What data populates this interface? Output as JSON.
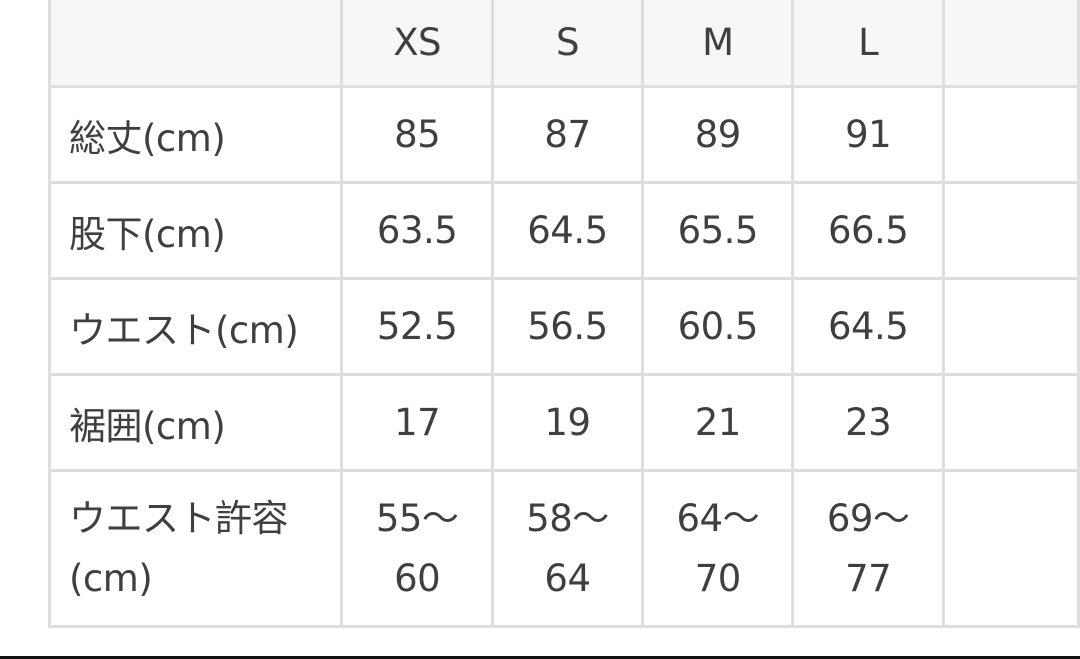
{
  "size_table": {
    "columns": [
      "",
      "XS",
      "S",
      "M",
      "L",
      ""
    ],
    "rows": [
      {
        "label": "総丈(cm)",
        "values": [
          "85",
          "87",
          "89",
          "91",
          ""
        ]
      },
      {
        "label": "股下(cm)",
        "values": [
          "63.5",
          "64.5",
          "65.5",
          "66.5",
          ""
        ]
      },
      {
        "label": "ウエスト(cm)",
        "values": [
          "52.5",
          "56.5",
          "60.5",
          "64.5",
          ""
        ]
      },
      {
        "label": "裾囲(cm)",
        "values": [
          "17",
          "19",
          "21",
          "23",
          ""
        ]
      },
      {
        "label": "ウエスト許容(cm)",
        "label_lines": [
          "ウエスト許容",
          "(cm)"
        ],
        "values_lines": [
          [
            "55〜",
            "60"
          ],
          [
            "58〜",
            "64"
          ],
          [
            "64〜",
            "70"
          ],
          [
            "69〜",
            "77"
          ],
          [
            "",
            ""
          ]
        ]
      }
    ]
  },
  "colors": {
    "border": "#dedede",
    "header_bg": "#f7f7f7",
    "text": "#3f3f3f"
  }
}
